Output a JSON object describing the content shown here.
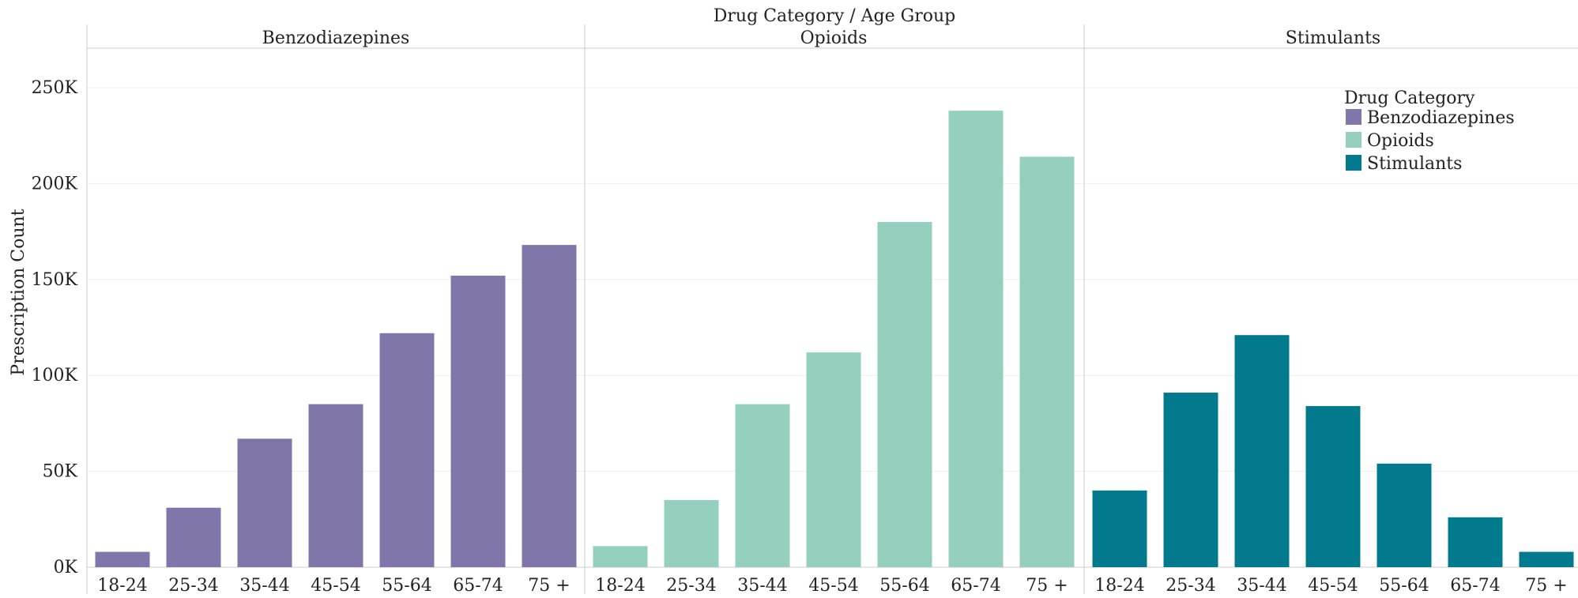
{
  "chart_data": {
    "type": "bar",
    "title": "Drug Category  /  Age Group",
    "ylabel": "Prescription Count",
    "xlabel": "",
    "ylim": [
      0,
      250000
    ],
    "y_ticks": [
      {
        "value": 0,
        "label": "0K"
      },
      {
        "value": 50000,
        "label": "50K"
      },
      {
        "value": 100000,
        "label": "100K"
      },
      {
        "value": 150000,
        "label": "150K"
      },
      {
        "value": 200000,
        "label": "200K"
      },
      {
        "value": 250000,
        "label": "250K"
      }
    ],
    "categories": [
      "18-24",
      "25-34",
      "35-44",
      "45-54",
      "55-64",
      "65-74",
      "75 +"
    ],
    "grid": true,
    "legend": {
      "title": "Drug Category",
      "position": "top-right",
      "items": [
        {
          "label": "Benzodiazepines",
          "color": "#8076aa"
        },
        {
          "label": "Opioids",
          "color": "#95d0bf"
        },
        {
          "label": "Stimulants",
          "color": "#007a8c"
        }
      ]
    },
    "series": [
      {
        "name": "Benzodiazepines",
        "color": "#8076aa",
        "values": [
          8000,
          31000,
          67000,
          85000,
          122000,
          152000,
          168000
        ]
      },
      {
        "name": "Opioids",
        "color": "#95d0bf",
        "values": [
          11000,
          35000,
          85000,
          112000,
          180000,
          238000,
          214000
        ]
      },
      {
        "name": "Stimulants",
        "color": "#007a8c",
        "values": [
          40000,
          91000,
          121000,
          84000,
          54000,
          26000,
          8000
        ]
      }
    ]
  }
}
